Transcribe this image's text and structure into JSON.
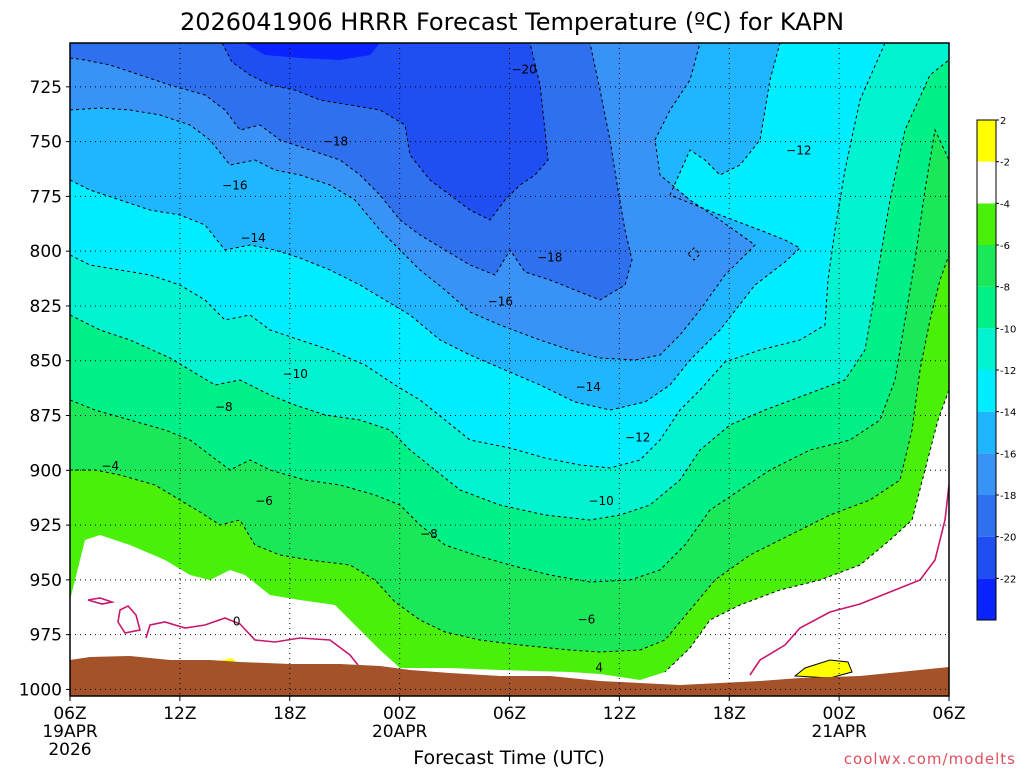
{
  "chart_data": {
    "type": "heatmap",
    "title": "2026041906 HRRR Forecast Temperature (ºC) for KAPN",
    "xlabel": "Forecast Time (UTC)",
    "ylabel": "",
    "credit": "coolwx.com/modelts",
    "x_ticks": [
      {
        "h": 0,
        "lines": [
          "06Z",
          "19APR",
          "2026"
        ]
      },
      {
        "h": 6,
        "lines": [
          "12Z"
        ]
      },
      {
        "h": 12,
        "lines": [
          "18Z"
        ]
      },
      {
        "h": 18,
        "lines": [
          "00Z",
          "20APR"
        ]
      },
      {
        "h": 24,
        "lines": [
          "06Z"
        ]
      },
      {
        "h": 30,
        "lines": [
          "12Z"
        ]
      },
      {
        "h": 36,
        "lines": [
          "18Z"
        ]
      },
      {
        "h": 42,
        "lines": [
          "00Z",
          "21APR"
        ]
      },
      {
        "h": 48,
        "lines": [
          "06Z"
        ]
      }
    ],
    "xlim": [
      0,
      48
    ],
    "y_ticks": [
      725,
      750,
      775,
      800,
      825,
      850,
      875,
      900,
      925,
      950,
      975,
      1000
    ],
    "ylim": [
      705,
      1003
    ],
    "grid": true,
    "colorbar": {
      "levels": [
        -24,
        -22,
        -20,
        -18,
        -16,
        -14,
        -12,
        -10,
        -8,
        -6,
        -4,
        -2,
        2,
        4
      ],
      "colors": [
        "#0a23ff",
        "#1f4ef2",
        "#2f70ee",
        "#3992f5",
        "#1fb6ff",
        "#00ecff",
        "#00f3d0",
        "#00f088",
        "#1ae858",
        "#4af00a",
        "#ffffff",
        "#ffff00"
      ],
      "labels": [
        "-22",
        "-20",
        "-18",
        "-16",
        "-14",
        "-12",
        "-10",
        "-8",
        "-6",
        "-4",
        "-2",
        "2"
      ]
    },
    "contour_labels": [
      {
        "text": "−20",
        "h": 24.8,
        "p": 717
      },
      {
        "text": "−18",
        "h": 14.5,
        "p": 750
      },
      {
        "text": "−16",
        "h": 9.0,
        "p": 770
      },
      {
        "text": "−14",
        "h": 10.0,
        "p": 794
      },
      {
        "text": "−12",
        "h": 39.8,
        "p": 754
      },
      {
        "text": "−18",
        "h": 26.2,
        "p": 803
      },
      {
        "text": "−16",
        "h": 23.5,
        "p": 823
      },
      {
        "text": "−10",
        "h": 12.3,
        "p": 856
      },
      {
        "text": "−14",
        "h": 28.3,
        "p": 862
      },
      {
        "text": "−8",
        "h": 8.4,
        "p": 871
      },
      {
        "text": "−12",
        "h": 31.0,
        "p": 885
      },
      {
        "text": "−4",
        "h": 2.2,
        "p": 898
      },
      {
        "text": "−6",
        "h": 10.6,
        "p": 914
      },
      {
        "text": "−10",
        "h": 29.0,
        "p": 914
      },
      {
        "text": "−8",
        "h": 19.6,
        "p": 929
      },
      {
        "text": "−6",
        "h": 28.2,
        "p": 968
      },
      {
        "text": "4",
        "h": 28.9,
        "p": 990
      },
      {
        "text": "0",
        "h": 9.1,
        "p": 969
      }
    ]
  }
}
